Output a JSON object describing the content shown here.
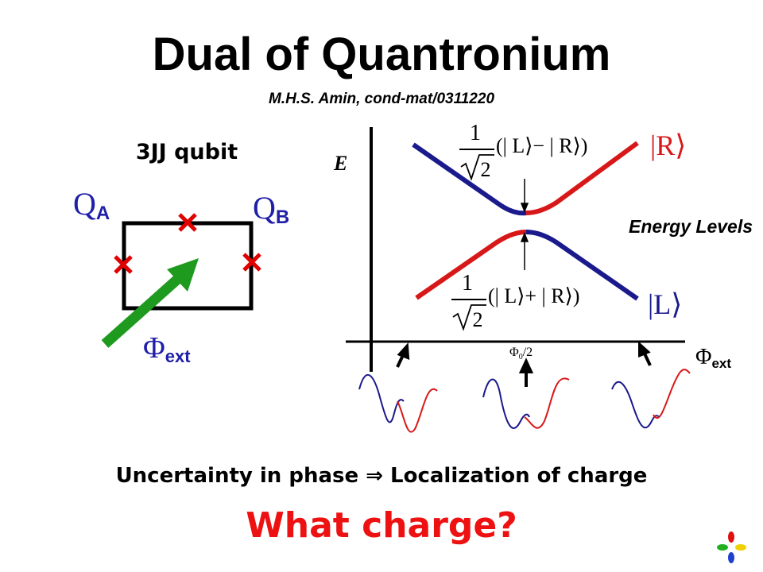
{
  "title": "Dual of Quantronium",
  "subtitle": "M.H.S. Amin, cond-mat/0311220",
  "circuit": {
    "label": "3JJ qubit",
    "qa": {
      "base": "Q",
      "sub": "A"
    },
    "qb": {
      "base": "Q",
      "sub": "B"
    },
    "flux": {
      "base": "Φ",
      "sub": "ext"
    }
  },
  "plot": {
    "y_label": "E",
    "x_label": {
      "base": "Φ",
      "sub": "ext"
    },
    "center_label": {
      "base": "Φ",
      "sub": "0",
      "rest": "/2"
    },
    "legend": "Energy Levels",
    "upper_state": "|R⟩",
    "lower_state": "|L⟩",
    "upper_formula": {
      "numerator": "1",
      "denominator": "2",
      "expression": "(| L⟩− | R⟩)"
    },
    "lower_formula": {
      "numerator": "1",
      "denominator": "2",
      "expression": "(| L⟩+ | R⟩)"
    }
  },
  "statement": "Uncertainty in phase ⇒ Localization of charge",
  "question": "What charge?"
}
